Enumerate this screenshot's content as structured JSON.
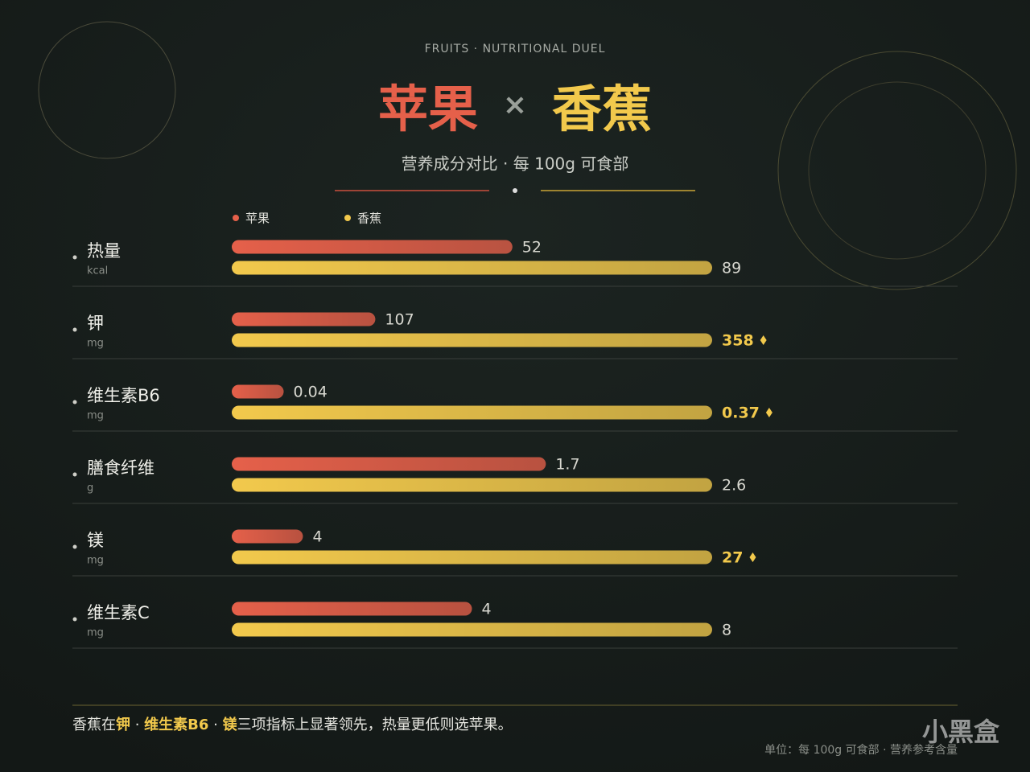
{
  "chart_data": {
    "type": "bar",
    "kicker": "FRUITS · NUTRITIONAL DUEL",
    "title_left": "苹果",
    "title_sep": "×",
    "title_right": "香蕉",
    "subtitle": "营养成分对比 · 每 100g 可食部",
    "categories": [
      "热量",
      "钾",
      "维生素B6",
      "膳食纤维",
      "镁",
      "维生素C"
    ],
    "units": [
      "kcal",
      "mg",
      "mg",
      "g",
      "mg",
      "mg"
    ],
    "series": [
      {
        "name": "苹果",
        "color": "#e5604a",
        "values": [
          52,
          107,
          0.04,
          1.7,
          4,
          4
        ]
      },
      {
        "name": "香蕉",
        "color": "#f2c94c",
        "values": [
          89,
          358,
          0.37,
          2.6,
          27,
          8
        ]
      }
    ],
    "highlight": [
      false,
      true,
      true,
      false,
      true,
      false
    ],
    "footnote": [
      {
        "text": "香蕉在",
        "highlight": false
      },
      {
        "text": "钾",
        "highlight": true
      },
      {
        "text": " · ",
        "highlight": false
      },
      {
        "text": "维生素B6",
        "highlight": true
      },
      {
        "text": " · ",
        "highlight": false
      },
      {
        "text": "镁",
        "highlight": true
      },
      {
        "text": "三项指标上显著领先，热量更低则选苹果。",
        "highlight": false
      }
    ],
    "unit_note": "单位：每 100g 可食部 · 营养参考含量",
    "watermark": "小黑盒"
  }
}
